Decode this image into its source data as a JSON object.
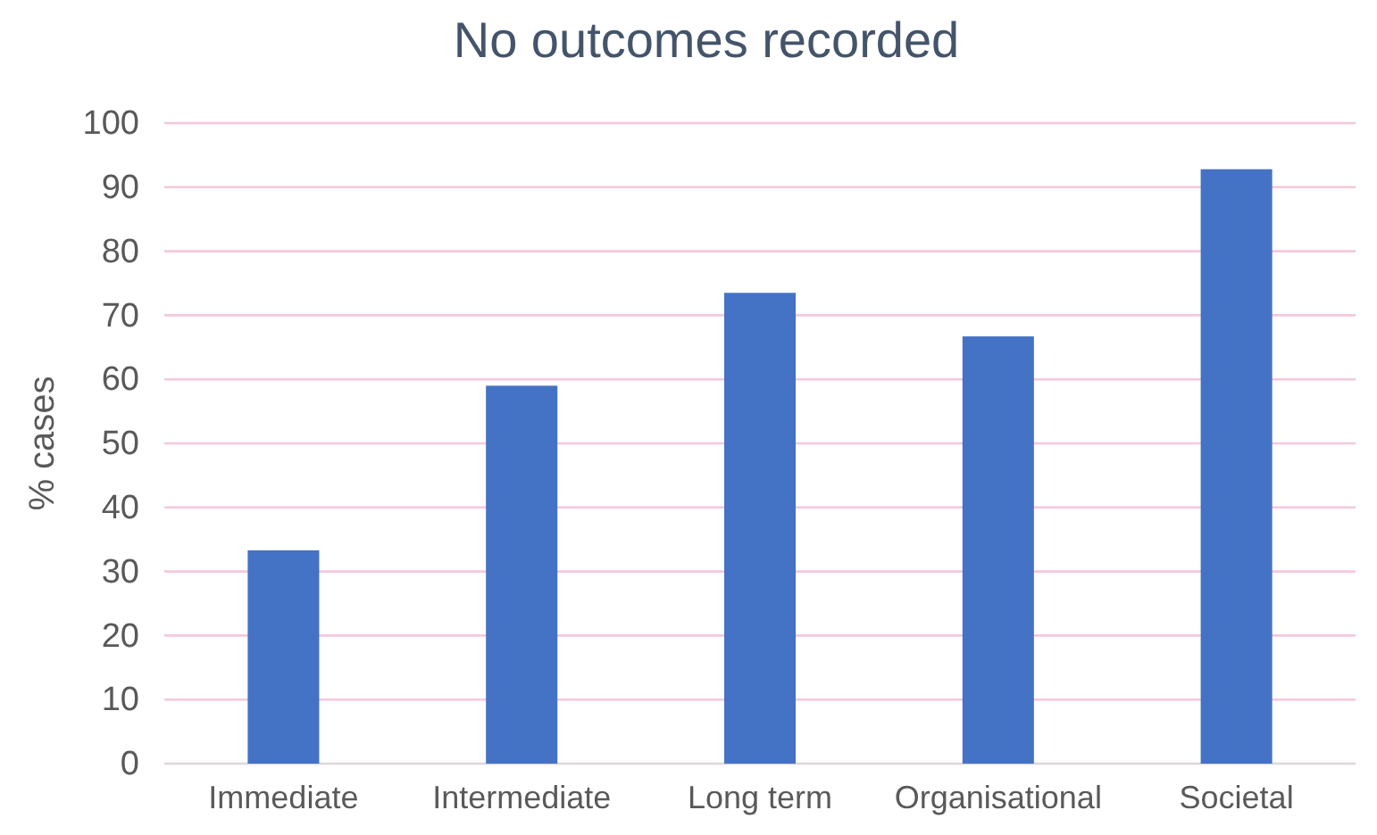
{
  "chart_data": {
    "type": "bar",
    "title": "No outcomes recorded",
    "ylabel": "% cases",
    "categories": [
      "Immediate",
      "Intermediate",
      "Long term",
      "Organisational",
      "Societal"
    ],
    "values": [
      33.3,
      59,
      73.5,
      66.7,
      92.8
    ],
    "color": "#4472c4",
    "ylim": [
      0,
      100
    ],
    "yticks": [
      0,
      10,
      20,
      30,
      40,
      50,
      60,
      70,
      80,
      90,
      100
    ],
    "grid": "y"
  }
}
